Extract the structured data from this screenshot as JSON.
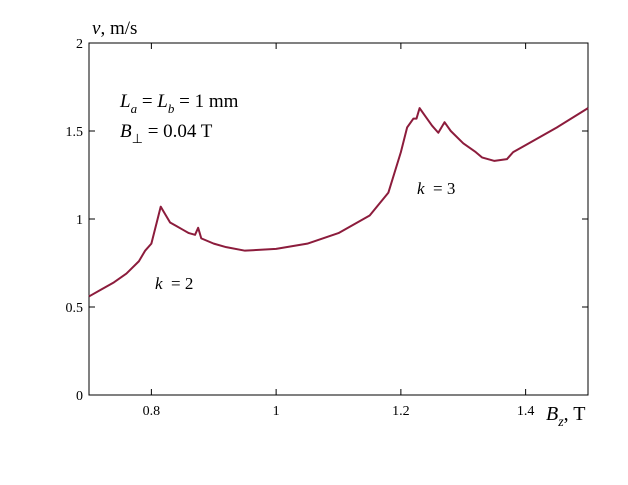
{
  "chart_data": {
    "type": "line",
    "y_label": {
      "symbol": "v",
      "unit": ", m/s"
    },
    "x_label": {
      "symbol": "B",
      "sub": "z",
      "unit": ", T"
    },
    "annotations": [
      {
        "parts": [
          "L",
          "a",
          " = ",
          "L",
          "b",
          " = 1 mm"
        ]
      },
      {
        "parts": [
          "B",
          "⊥",
          " = 0.04 T"
        ]
      },
      {
        "parts": [
          "k",
          "  = 2"
        ]
      },
      {
        "parts": [
          "k",
          "  = 3"
        ]
      }
    ],
    "x": [
      0.7,
      0.72,
      0.74,
      0.76,
      0.78,
      0.79,
      0.8,
      0.81,
      0.815,
      0.82,
      0.83,
      0.84,
      0.85,
      0.86,
      0.87,
      0.875,
      0.88,
      0.9,
      0.92,
      0.95,
      1.0,
      1.05,
      1.1,
      1.15,
      1.18,
      1.2,
      1.21,
      1.22,
      1.225,
      1.23,
      1.24,
      1.25,
      1.26,
      1.27,
      1.28,
      1.3,
      1.32,
      1.33,
      1.35,
      1.37,
      1.38,
      1.4,
      1.45,
      1.5
    ],
    "series": [
      {
        "color": "#8c1c3c",
        "values": [
          0.56,
          0.6,
          0.64,
          0.69,
          0.76,
          0.82,
          0.86,
          1.0,
          1.07,
          1.04,
          0.98,
          0.96,
          0.94,
          0.92,
          0.91,
          0.95,
          0.89,
          0.86,
          0.84,
          0.82,
          0.83,
          0.86,
          0.92,
          1.02,
          1.15,
          1.38,
          1.52,
          1.57,
          1.57,
          1.63,
          1.58,
          1.53,
          1.49,
          1.55,
          1.5,
          1.43,
          1.38,
          1.35,
          1.33,
          1.34,
          1.38,
          1.42,
          1.52,
          1.63
        ]
      }
    ],
    "xlim": [
      0.7,
      1.5
    ],
    "xticks": [
      0.8,
      1,
      1.2,
      1.4
    ],
    "ylim": [
      0,
      2
    ],
    "yticks": [
      0,
      0.5,
      1,
      1.5,
      2
    ]
  }
}
